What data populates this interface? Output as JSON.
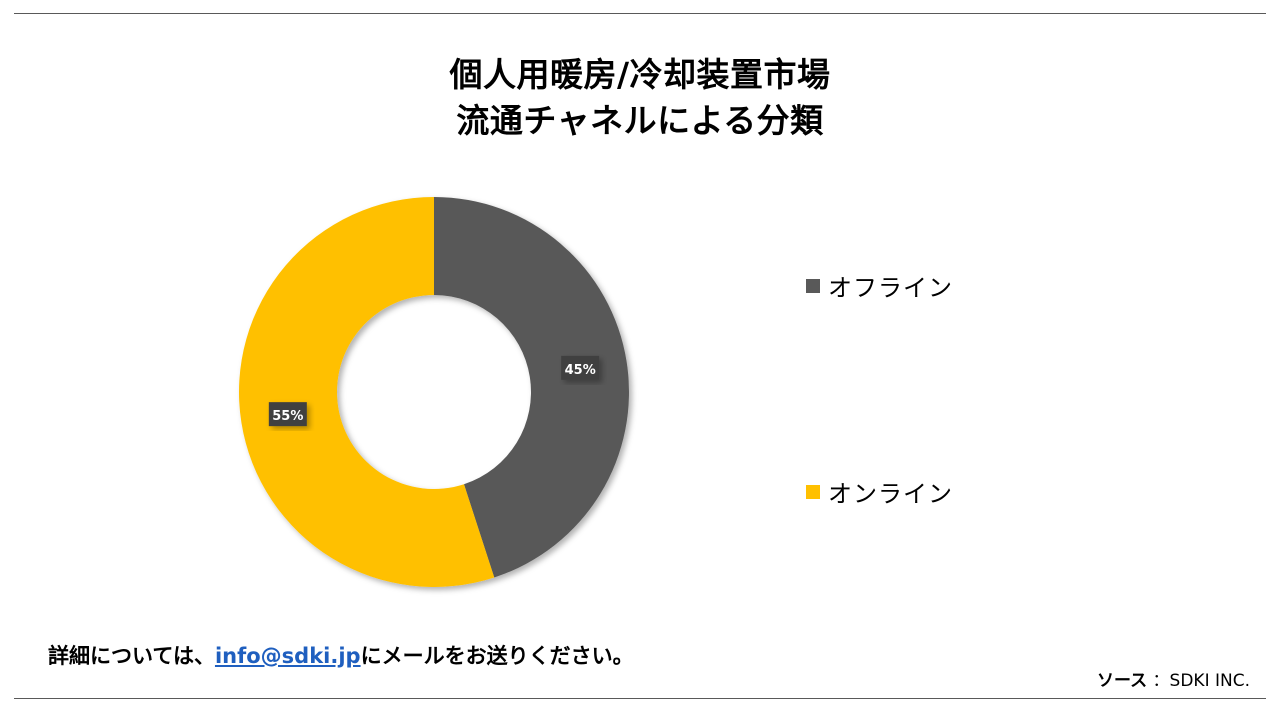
{
  "title_line1": "個人用暖房/冷却装置市場",
  "title_line2": "流通チャネルによる分類",
  "chart_data": {
    "type": "pie",
    "style": "donut",
    "categories": [
      "オフライン",
      "オンライン"
    ],
    "values": [
      45,
      55
    ],
    "labels": [
      "45%",
      "55%"
    ],
    "colors": [
      "#595959",
      "#FFC000"
    ],
    "legend_position": "right"
  },
  "contact": {
    "prefix": "詳細については、",
    "email": "info@sdki.jp",
    "suffix": "にメールをお送りください。"
  },
  "source": {
    "label": "ソース",
    "value": "：SDKI INC."
  }
}
